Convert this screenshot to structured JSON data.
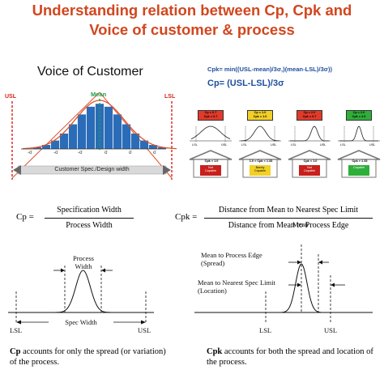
{
  "title": {
    "line1": "Understanding relation between Cp, Cpk and",
    "line2": "Voice of customer & process"
  },
  "voc": {
    "heading": "Voice of Customer",
    "usl": "USL",
    "lsl": "LSL",
    "mean": "Mean",
    "sigma_ticks": [
      "-σ",
      "-σ",
      "-σ",
      "σ",
      "σ",
      "σ"
    ],
    "spec_label": "Customer Spec./Design width",
    "colors": {
      "bar": "#2b6cb8",
      "curve": "#e0522a",
      "limit": "#d6221a",
      "mean": "#1aa04a"
    }
  },
  "formulas": {
    "cpk": "Cpk= min((USL-mean)/3σ,)(mean-LSL)/3σ))",
    "cp": "Cp= (USL-LSL)/3σ"
  },
  "capability_cases": [
    {
      "badge": "Cp = 0.7\nCpk = 0.7",
      "badge_color": "#e23a2a",
      "house": "Cpk < 1.0",
      "roof": "Not\nCapable",
      "roof_color": "#c8201c"
    },
    {
      "badge": "Cp = 1.0\nCpk = 1.0",
      "badge_color": "#f2d027",
      "house": "1.0 < Cpk < 1.33",
      "roof": "Barely\nCapable",
      "roof_color": "#f2d027"
    },
    {
      "badge": "Cp = 2.0\nCpk = 0.7",
      "badge_color": "#e23a2a",
      "house": "Cpk < 1.0",
      "roof": "Not\nCapable",
      "roof_color": "#c8201c"
    },
    {
      "badge": "Cp = 2.0\nCpk = 2.0",
      "badge_color": "#2fae3a",
      "house": "Cpk > 1.33",
      "roof": "Capable",
      "roof_color": "#2fae3a"
    }
  ],
  "mini_axis": {
    "lsl": "LSL",
    "usl": "USL"
  },
  "cp_formula": {
    "lhs": "Cp =",
    "numerator": "Specification Width",
    "denominator": "Process Width"
  },
  "cpk_formula": {
    "lhs": "Cpk =",
    "numerator": "Distance from Mean to Nearest Spec Limit",
    "denominator": "Distance from Mean to Process Edge"
  },
  "cp_diagram": {
    "process_width": "Process\nWidth",
    "spec_width": "Spec Width",
    "lsl": "LSL",
    "usl": "USL"
  },
  "cpk_diagram": {
    "mean": "Mean",
    "mean_to_edge": "Mean to Process Edge\n(Spread)",
    "mean_to_spec": "Mean to Nearest Spec Limit\n(Location)",
    "lsl": "LSL",
    "usl": "USL"
  },
  "cp_caption": {
    "bold": "Cp",
    "rest": " accounts for only the spread (or variation) of the process."
  },
  "cpk_caption": {
    "bold": "Cpk",
    "rest": " accounts for both the spread and location of the process."
  }
}
